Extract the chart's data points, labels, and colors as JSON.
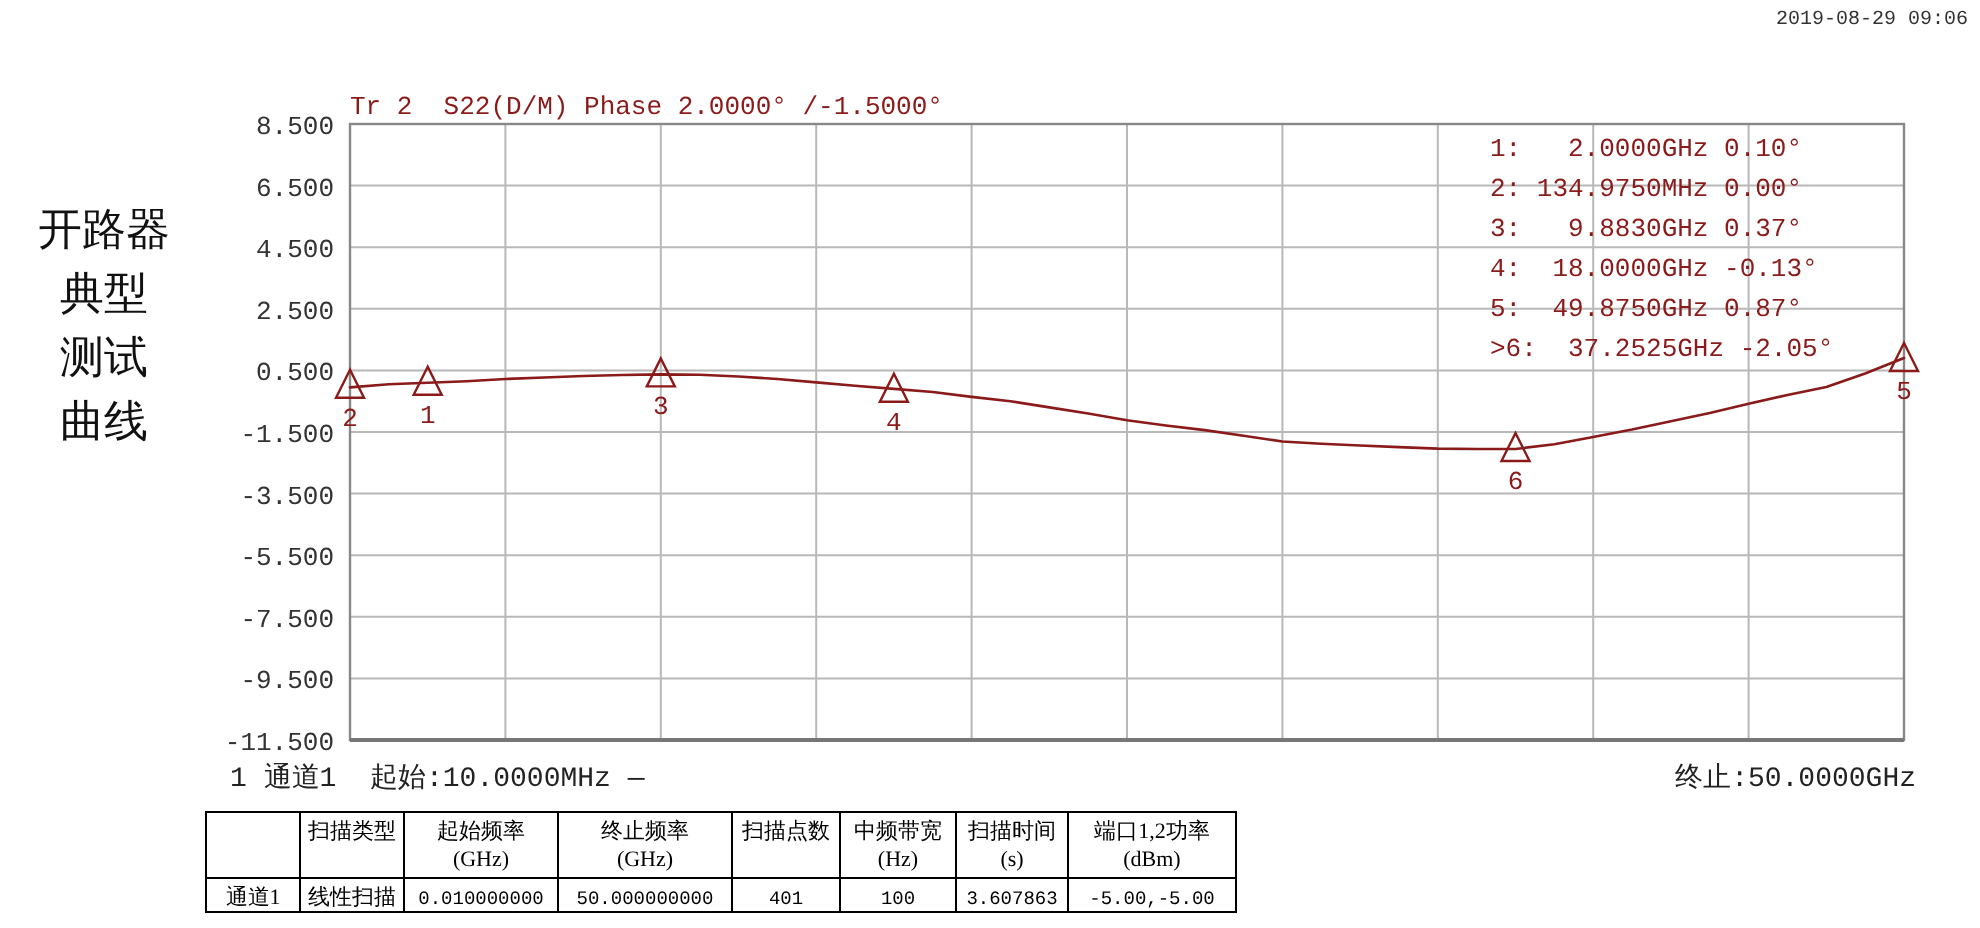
{
  "chart_data": {
    "type": "line",
    "title": "开路器典型测试曲线",
    "subtitle": "Tr 2  S22(D/M) Phase 2.0000° /-1.5000°",
    "categories": [
      null,
      null,
      null,
      null,
      null,
      null,
      null,
      null,
      null,
      null,
      null,
      null,
      null,
      null,
      null,
      null,
      null,
      null,
      null,
      null,
      null,
      null,
      null,
      null,
      null,
      null,
      null,
      null,
      null,
      null,
      null,
      null,
      null,
      null,
      null,
      null,
      null,
      null,
      null,
      null,
      null
    ],
    "series": [
      {
        "color": "#8b1a1a",
        "values": [
          -0.05,
          0.05,
          0.1,
          0.15,
          0.22,
          0.27,
          0.32,
          0.35,
          0.37,
          0.36,
          0.3,
          0.22,
          0.11,
          0.0,
          -0.1,
          -0.2,
          -0.36,
          -0.5,
          -0.7,
          -0.9,
          -1.12,
          -1.29,
          -1.44,
          -1.62,
          -1.81,
          -1.88,
          -1.94,
          -1.99,
          -2.04,
          -2.05,
          -2.05,
          -1.9,
          -1.66,
          -1.42,
          -1.15,
          -0.88,
          -0.58,
          -0.3,
          -0.04,
          0.4,
          0.9
        ]
      },
      {
        "type": "scatter",
        "marker": "triangle",
        "color": "#8b1a1a",
        "values": [
          0.0,
          null,
          0.1,
          null,
          null,
          null,
          null,
          null,
          0.37,
          null,
          null,
          null,
          null,
          null,
          -0.13,
          null,
          null,
          null,
          null,
          null,
          null,
          null,
          null,
          null,
          null,
          null,
          null,
          null,
          null,
          null,
          -2.05,
          null,
          null,
          null,
          null,
          null,
          null,
          null,
          null,
          null,
          0.87
        ]
      }
    ],
    "tick_labels": "y",
    "ylim": [
      -11.5,
      8.5
    ],
    "yticks": [
      {
        "value": 8.5,
        "label": "8.500"
      },
      {
        "value": 6.5,
        "label": "6.500"
      },
      {
        "value": 4.5,
        "label": "4.500"
      },
      {
        "value": 2.5,
        "label": "2.500"
      },
      {
        "value": 0.5,
        "label": "0.500"
      },
      {
        "value": -1.5,
        "label": "-1.500"
      },
      {
        "value": -3.5,
        "label": "-3.500"
      },
      {
        "value": -5.5,
        "label": "-5.500"
      },
      {
        "value": -7.5,
        "label": "-7.500"
      },
      {
        "value": -9.5,
        "label": "-9.500"
      },
      {
        "value": -11.5,
        "label": "-11.500"
      }
    ],
    "grid": true,
    "annotations": [
      "2019-08-29 09:06",
      "1 通道1  起始:10.0000MHz —",
      "终止:50.0000GHz",
      "1:   2.0000GHz 0.10°",
      "2: 134.9750MHz 0.00°",
      "3:   9.8830GHz 0.37°",
      "4:  18.0000GHz -0.13°",
      "5:  49.8750GHz 0.87°",
      ">6:  37.2525GHz -2.05°",
      "扫描类型",
      "起始频率\n(GHz)",
      "终止频率\n(GHz)",
      "扫描点数",
      "中频带宽\n(Hz)",
      "扫描时间\n(s)",
      "端口1,2功率\n(dBm)",
      "通道1",
      "线性扫描",
      "0.010000000",
      "50.000000000",
      "401",
      "100",
      "3.607863",
      "-5.00,-5.00",
      {
        "text": "2",
        "y": 0.0
      },
      {
        "text": "1",
        "y": 0.1
      },
      {
        "text": "3",
        "y": 0.37
      },
      {
        "text": "4",
        "y": -0.13
      },
      {
        "text": "6",
        "y": -2.05
      },
      {
        "text": "5",
        "y": 0.87
      }
    ]
  }
}
